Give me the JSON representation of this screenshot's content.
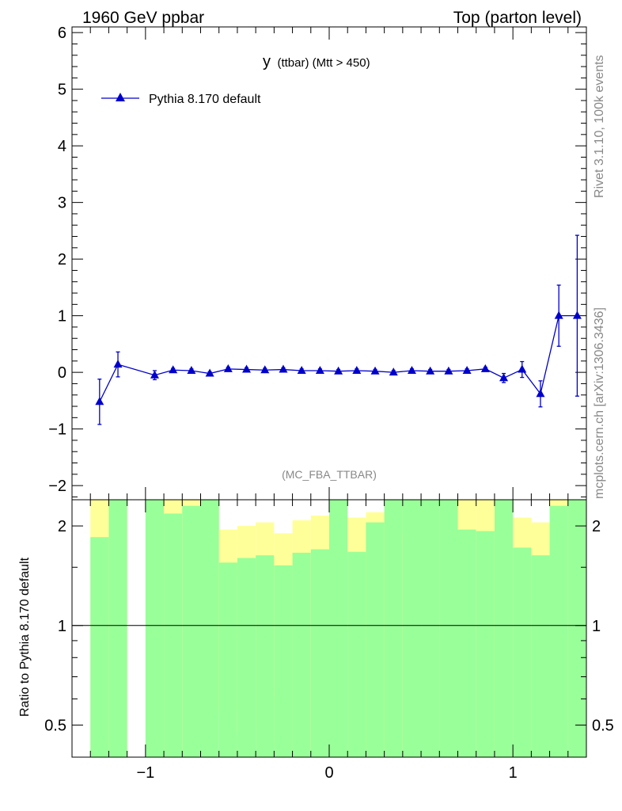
{
  "header": {
    "left": "1960 GeV ppbar",
    "right": "Top (parton level)"
  },
  "side": {
    "rivet": "Rivet 3.1.10,  100k events",
    "mcplots": "mcplots.cern.ch [arXiv:1306.3436]"
  },
  "colors": {
    "series": "#0000cc",
    "band_inner": "#99ff99",
    "band_outer": "#ffff99",
    "axis": "#000000",
    "watermark": "#888888"
  },
  "chart_data": [
    {
      "type": "line",
      "title": "y",
      "title_sub": "(ttbar) (Mtt > 450)",
      "watermark": "(MC_FBA_TTBAR)",
      "xlim": [
        -1.4,
        1.4
      ],
      "ylim": [
        -2.25,
        6.1
      ],
      "x_ticks": [
        -1,
        0,
        1
      ],
      "x_tick_labels": [
        "−1",
        "0",
        "1"
      ],
      "y_ticks": [
        -2,
        -1,
        0,
        1,
        2,
        3,
        4,
        5,
        6
      ],
      "y_tick_labels": [
        "−2",
        "−1",
        "0",
        "1",
        "2",
        "3",
        "4",
        "5",
        "6"
      ],
      "legend": "top-left",
      "series": [
        {
          "name": "Pythia 8.170 default",
          "marker": "triangle-up",
          "x": [
            -1.25,
            -1.15,
            -0.95,
            -0.85,
            -0.75,
            -0.65,
            -0.55,
            -0.45,
            -0.35,
            -0.25,
            -0.15,
            -0.05,
            0.05,
            0.15,
            0.25,
            0.35,
            0.45,
            0.55,
            0.65,
            0.75,
            0.85,
            0.95,
            1.05,
            1.15,
            1.25,
            1.35
          ],
          "y": [
            -0.52,
            0.14,
            -0.05,
            0.04,
            0.03,
            -0.02,
            0.06,
            0.05,
            0.04,
            0.05,
            0.03,
            0.03,
            0.02,
            0.03,
            0.02,
            0.0,
            0.03,
            0.02,
            0.02,
            0.03,
            0.06,
            -0.1,
            0.05,
            -0.38,
            1.0,
            1.0
          ],
          "yerr": [
            0.4,
            0.22,
            0.08,
            0.03,
            0.03,
            0.03,
            0.03,
            0.03,
            0.03,
            0.03,
            0.03,
            0.03,
            0.03,
            0.03,
            0.03,
            0.03,
            0.03,
            0.03,
            0.03,
            0.03,
            0.03,
            0.08,
            0.14,
            0.23,
            0.54,
            1.42
          ]
        }
      ]
    },
    {
      "type": "area",
      "ylabel": "Ratio to Pythia 8.170 default",
      "xlim": [
        -1.4,
        1.4
      ],
      "ylim": [
        0.4,
        2.4
      ],
      "y_scale": "log",
      "x_ticks": [
        -1,
        0,
        1
      ],
      "x_tick_labels": [
        "−1",
        "0",
        "1"
      ],
      "y_ticks": [
        0.5,
        1,
        2
      ],
      "y_tick_labels": [
        "0.5",
        "1",
        "2"
      ],
      "reference_line": 1,
      "bin_edges": [
        -1.3,
        -1.2,
        -1.1,
        -1.0,
        -0.9,
        -0.8,
        -0.7,
        -0.6,
        -0.5,
        -0.4,
        -0.3,
        -0.2,
        -0.1,
        0.0,
        0.1,
        0.2,
        0.3,
        0.4,
        0.5,
        0.6,
        0.7,
        0.8,
        0.9,
        1.0,
        1.1,
        1.2,
        1.3,
        1.4
      ],
      "bands": [
        {
          "name": "outer",
          "low": [
            0.4,
            0.4,
            null,
            0.4,
            0.4,
            0.4,
            0.4,
            0.55,
            0.48,
            0.42,
            0.6,
            0.37,
            0.4,
            0.4,
            0.4,
            0.4,
            0.4,
            0.4,
            0.4,
            0.4,
            0.4,
            0.4,
            0.4,
            0.4,
            0.4,
            0.45,
            0.4
          ],
          "high": [
            2.4,
            2.4,
            null,
            2.4,
            2.4,
            2.4,
            2.4,
            1.95,
            2.0,
            2.05,
            1.9,
            2.08,
            2.15,
            2.2,
            2.12,
            2.2,
            2.4,
            1.9,
            2.4,
            2.4,
            2.4,
            2.4,
            2.2,
            2.12,
            2.05,
            2.4,
            2.4
          ]
        },
        {
          "name": "inner",
          "low": [
            0.4,
            0.4,
            null,
            0.4,
            0.4,
            0.4,
            0.4,
            0.4,
            0.4,
            0.4,
            0.4,
            0.4,
            0.4,
            0.4,
            0.4,
            0.4,
            0.4,
            0.4,
            0.4,
            0.4,
            0.4,
            0.4,
            0.4,
            0.4,
            0.4,
            0.4,
            0.4
          ],
          "high": [
            1.85,
            2.4,
            null,
            2.4,
            2.18,
            2.3,
            2.4,
            1.55,
            1.6,
            1.63,
            1.52,
            1.66,
            1.7,
            2.4,
            1.67,
            2.05,
            2.4,
            2.4,
            2.4,
            2.4,
            1.95,
            1.93,
            2.4,
            1.72,
            1.63,
            2.3,
            2.4
          ]
        }
      ]
    }
  ]
}
